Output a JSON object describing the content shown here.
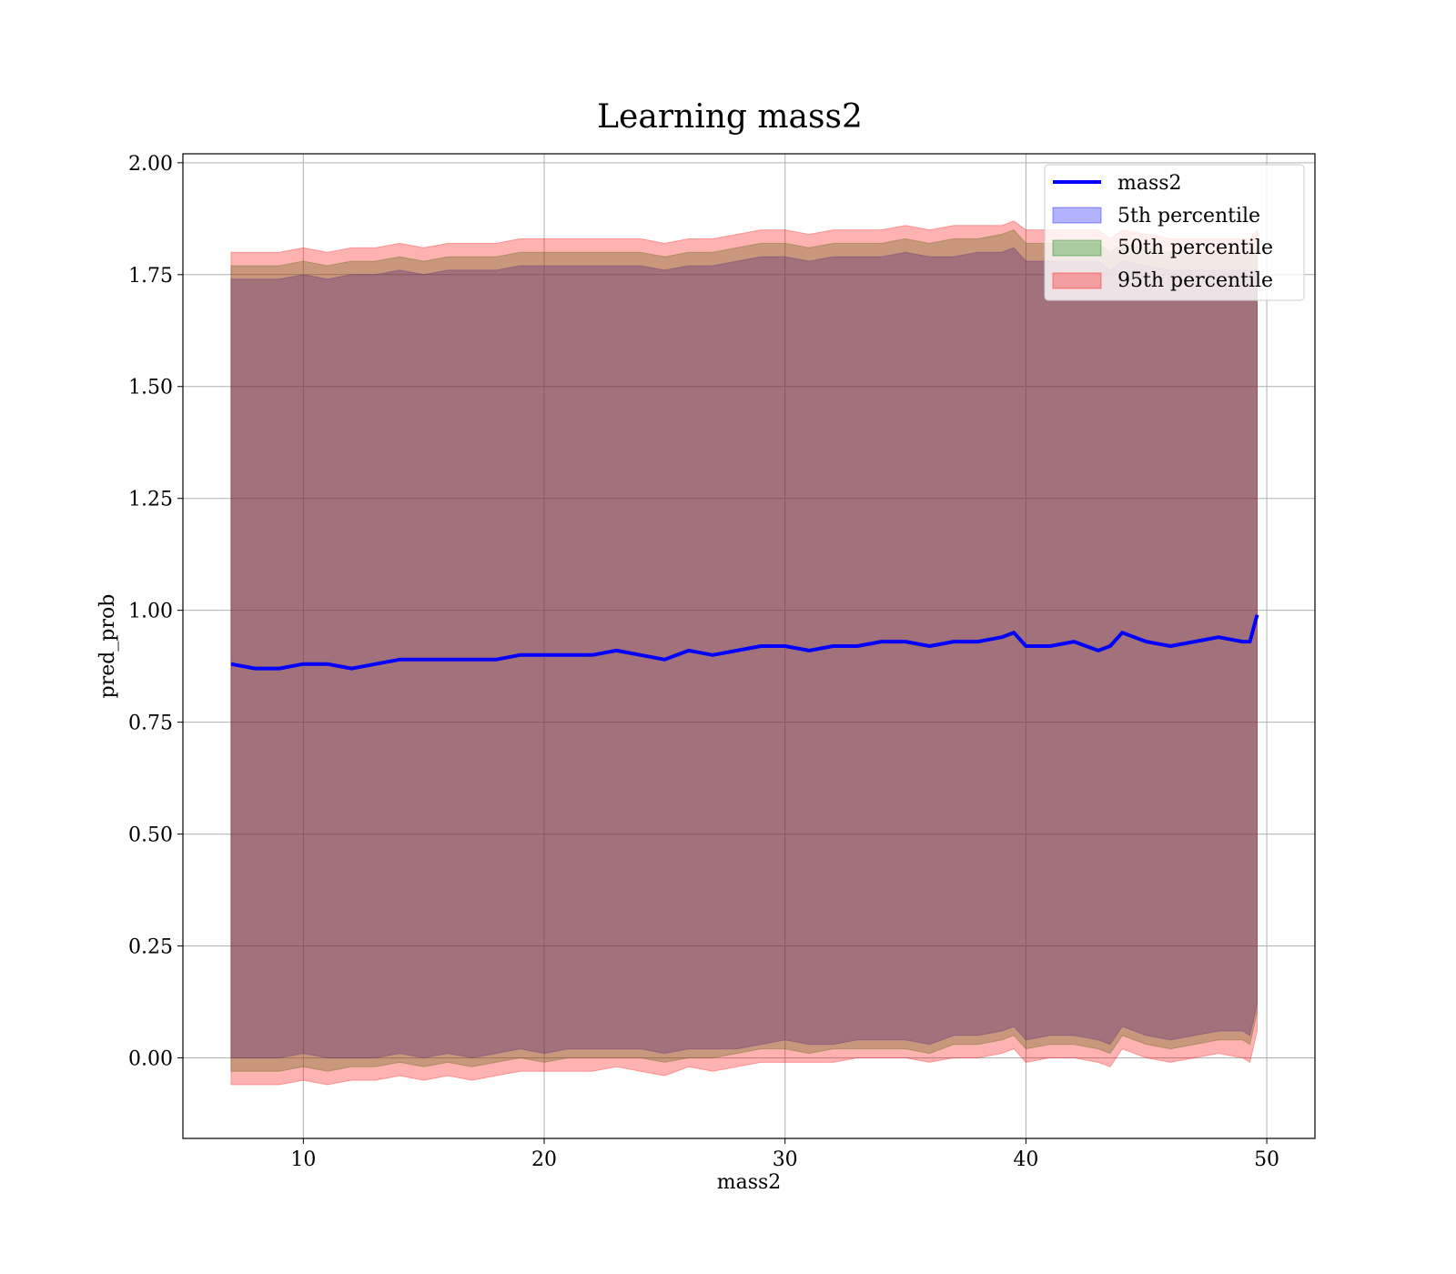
{
  "chart_data": {
    "type": "line",
    "title": "Learning mass2",
    "xlabel": "mass2",
    "ylabel": "pred_prob",
    "xlim": [
      5,
      52
    ],
    "ylim": [
      -0.18,
      2.02
    ],
    "xticks": [
      10,
      20,
      30,
      40,
      50
    ],
    "yticks": [
      0.0,
      0.25,
      0.5,
      0.75,
      1.0,
      1.25,
      1.5,
      1.75,
      2.0
    ],
    "xtick_labels": [
      "10",
      "20",
      "30",
      "40",
      "50"
    ],
    "ytick_labels": [
      "0.00",
      "0.25",
      "0.50",
      "0.75",
      "1.00",
      "1.25",
      "1.50",
      "1.75",
      "2.00"
    ],
    "grid": true,
    "legend_position": "top-right",
    "colors": {
      "line": "#0000ff",
      "p5": "#0000ff",
      "p50": "#008000",
      "p95": "#ff0000"
    },
    "x": [
      7.0,
      8.0,
      9.0,
      10.0,
      11.0,
      12.0,
      13.0,
      14.0,
      15.0,
      16.0,
      17.0,
      18.0,
      19.0,
      20.0,
      21.0,
      22.0,
      23.0,
      24.0,
      25.0,
      26.0,
      27.0,
      28.0,
      29.0,
      30.0,
      31.0,
      32.0,
      33.0,
      34.0,
      35.0,
      36.0,
      37.0,
      38.0,
      39.0,
      39.5,
      40.0,
      41.0,
      42.0,
      43.0,
      43.5,
      44.0,
      45.0,
      46.0,
      47.0,
      48.0,
      49.0,
      49.3,
      49.6
    ],
    "series": [
      {
        "name": "mass2",
        "type": "line",
        "values": [
          0.88,
          0.87,
          0.87,
          0.88,
          0.88,
          0.87,
          0.88,
          0.89,
          0.89,
          0.89,
          0.89,
          0.89,
          0.9,
          0.9,
          0.9,
          0.9,
          0.91,
          0.9,
          0.89,
          0.91,
          0.9,
          0.91,
          0.92,
          0.92,
          0.91,
          0.92,
          0.92,
          0.93,
          0.93,
          0.92,
          0.93,
          0.93,
          0.94,
          0.95,
          0.92,
          0.92,
          0.93,
          0.91,
          0.92,
          0.95,
          0.93,
          0.92,
          0.93,
          0.94,
          0.93,
          0.93,
          0.99
        ]
      },
      {
        "name": "5th percentile",
        "type": "band",
        "lower": [
          0.0,
          0.0,
          0.0,
          0.01,
          0.0,
          0.0,
          0.0,
          0.01,
          0.0,
          0.01,
          0.0,
          0.01,
          0.02,
          0.01,
          0.02,
          0.02,
          0.02,
          0.02,
          0.01,
          0.02,
          0.02,
          0.02,
          0.03,
          0.04,
          0.03,
          0.03,
          0.04,
          0.04,
          0.04,
          0.03,
          0.05,
          0.05,
          0.06,
          0.07,
          0.04,
          0.05,
          0.05,
          0.04,
          0.03,
          0.07,
          0.05,
          0.04,
          0.05,
          0.06,
          0.06,
          0.05,
          0.12
        ],
        "upper": [
          1.74,
          1.74,
          1.74,
          1.75,
          1.74,
          1.75,
          1.75,
          1.76,
          1.75,
          1.76,
          1.76,
          1.76,
          1.77,
          1.77,
          1.77,
          1.77,
          1.77,
          1.77,
          1.76,
          1.77,
          1.77,
          1.78,
          1.79,
          1.79,
          1.78,
          1.79,
          1.79,
          1.79,
          1.8,
          1.79,
          1.79,
          1.8,
          1.8,
          1.81,
          1.78,
          1.78,
          1.78,
          1.78,
          1.76,
          1.78,
          1.77,
          1.76,
          1.76,
          1.76,
          1.76,
          1.76,
          1.76
        ]
      },
      {
        "name": "50th percentile",
        "type": "band",
        "lower": [
          -0.03,
          -0.03,
          -0.03,
          -0.02,
          -0.03,
          -0.02,
          -0.02,
          -0.01,
          -0.02,
          -0.01,
          -0.02,
          -0.01,
          0.0,
          -0.01,
          0.0,
          0.0,
          0.0,
          0.0,
          -0.01,
          0.0,
          0.0,
          0.01,
          0.02,
          0.02,
          0.01,
          0.02,
          0.02,
          0.02,
          0.02,
          0.01,
          0.03,
          0.03,
          0.04,
          0.05,
          0.02,
          0.03,
          0.03,
          0.02,
          0.01,
          0.05,
          0.03,
          0.02,
          0.03,
          0.04,
          0.04,
          0.03,
          0.1
        ],
        "upper": [
          1.77,
          1.77,
          1.77,
          1.78,
          1.77,
          1.78,
          1.78,
          1.79,
          1.78,
          1.79,
          1.79,
          1.79,
          1.8,
          1.8,
          1.8,
          1.8,
          1.8,
          1.8,
          1.79,
          1.8,
          1.8,
          1.81,
          1.82,
          1.82,
          1.81,
          1.82,
          1.82,
          1.82,
          1.83,
          1.82,
          1.83,
          1.83,
          1.84,
          1.85,
          1.82,
          1.82,
          1.82,
          1.82,
          1.8,
          1.82,
          1.81,
          1.8,
          1.8,
          1.8,
          1.8,
          1.8,
          1.8
        ]
      },
      {
        "name": "95th percentile",
        "type": "band",
        "lower": [
          -0.06,
          -0.06,
          -0.06,
          -0.05,
          -0.06,
          -0.05,
          -0.05,
          -0.04,
          -0.05,
          -0.04,
          -0.05,
          -0.04,
          -0.03,
          -0.03,
          -0.03,
          -0.03,
          -0.02,
          -0.03,
          -0.04,
          -0.02,
          -0.03,
          -0.02,
          -0.01,
          -0.01,
          -0.01,
          -0.01,
          0.0,
          0.0,
          0.0,
          -0.01,
          0.0,
          0.0,
          0.01,
          0.02,
          -0.01,
          0.0,
          0.0,
          -0.01,
          -0.02,
          0.02,
          0.0,
          -0.01,
          0.0,
          0.01,
          0.0,
          -0.01,
          0.06
        ],
        "upper": [
          1.8,
          1.8,
          1.8,
          1.81,
          1.8,
          1.81,
          1.81,
          1.82,
          1.81,
          1.82,
          1.82,
          1.82,
          1.83,
          1.83,
          1.83,
          1.83,
          1.83,
          1.83,
          1.82,
          1.83,
          1.83,
          1.84,
          1.85,
          1.85,
          1.84,
          1.85,
          1.85,
          1.85,
          1.86,
          1.85,
          1.86,
          1.86,
          1.86,
          1.87,
          1.85,
          1.85,
          1.85,
          1.85,
          1.83,
          1.85,
          1.84,
          1.83,
          1.83,
          1.83,
          1.83,
          1.83,
          1.85
        ]
      }
    ],
    "legend": [
      "mass2",
      "5th percentile",
      "50th percentile",
      "95th percentile"
    ]
  }
}
